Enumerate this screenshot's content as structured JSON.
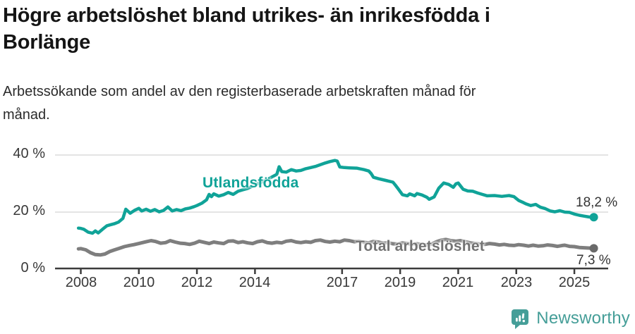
{
  "header": {
    "title": "Högre arbetslöshet bland utrikes- än inrikesfödda i\nBorlänge",
    "subtitle": "Arbetssökande som andel av den registerbaserade arbetskraften månad för\nmånad."
  },
  "footer": {
    "brand_name": "Newsworthy",
    "logo_icon": "bar-chart-speech-bubble-icon"
  },
  "colors": {
    "accent_teal": "#10a398",
    "series_gray": "#7e7e7e",
    "gray_marker": "#6a6a6a",
    "gray_label": "#737373",
    "grid": "#dcdcdc",
    "axis": "#3c3c3c",
    "tick_text": "#383838",
    "title_text": "#151515",
    "brand_teal": "#459e98"
  },
  "chart_data": {
    "type": "line",
    "title": "Högre arbetslöshet bland utrikes- än inrikesfödda i Borlänge",
    "subtitle": "Arbetssökande som andel av den registerbaserade arbetskraften månad för månad.",
    "xlabel": "",
    "ylabel": "",
    "grid": true,
    "legend_position": "inline-labels",
    "x_axis": {
      "unit": "year",
      "range": [
        2007.9,
        2025.7
      ],
      "ticks": [
        {
          "year": 2008,
          "label": "2008"
        },
        {
          "year": 2010,
          "label": "2010"
        },
        {
          "year": 2012,
          "label": "2012"
        },
        {
          "year": 2014,
          "label": "2014"
        },
        {
          "year": 2017,
          "label": "2017"
        },
        {
          "year": 2019,
          "label": "2019"
        },
        {
          "year": 2021,
          "label": "2021"
        },
        {
          "year": 2023,
          "label": "2023"
        },
        {
          "year": 2025,
          "label": "2025"
        }
      ]
    },
    "y_axis": {
      "unit": "%",
      "range": [
        0,
        44
      ],
      "ticks": [
        {
          "value": 0,
          "label": "0 %"
        },
        {
          "value": 20,
          "label": "20 %"
        },
        {
          "value": 40,
          "label": "40 %"
        }
      ]
    },
    "series": [
      {
        "name": "Utlandsfödda",
        "color": "#10a398",
        "marker_color": "#10a398",
        "end_label": "18,2 %",
        "end_value": 18.2,
        "points": [
          [
            2007.92,
            14.4
          ],
          [
            2008.0,
            14.3
          ],
          [
            2008.1,
            14.0
          ],
          [
            2008.25,
            13.0
          ],
          [
            2008.4,
            12.6
          ],
          [
            2008.5,
            13.4
          ],
          [
            2008.6,
            12.7
          ],
          [
            2008.75,
            14.0
          ],
          [
            2008.9,
            15.2
          ],
          [
            2009.0,
            15.5
          ],
          [
            2009.15,
            15.9
          ],
          [
            2009.3,
            16.5
          ],
          [
            2009.45,
            17.8
          ],
          [
            2009.55,
            21.0
          ],
          [
            2009.7,
            19.6
          ],
          [
            2009.85,
            20.6
          ],
          [
            2010.0,
            21.3
          ],
          [
            2010.1,
            20.4
          ],
          [
            2010.25,
            21.0
          ],
          [
            2010.4,
            20.3
          ],
          [
            2010.55,
            20.9
          ],
          [
            2010.7,
            20.1
          ],
          [
            2010.85,
            20.6
          ],
          [
            2011.0,
            21.8
          ],
          [
            2011.15,
            20.4
          ],
          [
            2011.3,
            20.9
          ],
          [
            2011.45,
            20.5
          ],
          [
            2011.6,
            21.1
          ],
          [
            2011.75,
            21.4
          ],
          [
            2011.9,
            21.9
          ],
          [
            2012.0,
            22.3
          ],
          [
            2012.17,
            23.1
          ],
          [
            2012.33,
            24.3
          ],
          [
            2012.42,
            26.2
          ],
          [
            2012.5,
            25.4
          ],
          [
            2012.58,
            26.4
          ],
          [
            2012.75,
            25.6
          ],
          [
            2012.92,
            26.1
          ],
          [
            2013.08,
            26.9
          ],
          [
            2013.25,
            26.2
          ],
          [
            2013.42,
            27.3
          ],
          [
            2013.58,
            27.8
          ],
          [
            2013.75,
            28.3
          ],
          [
            2013.92,
            29.1
          ],
          [
            2014.08,
            29.9
          ],
          [
            2014.25,
            30.6
          ],
          [
            2014.42,
            31.4
          ],
          [
            2014.58,
            32.3
          ],
          [
            2014.75,
            33.2
          ],
          [
            2014.83,
            35.9
          ],
          [
            2014.92,
            34.2
          ],
          [
            2015.08,
            34.0
          ],
          [
            2015.25,
            34.9
          ],
          [
            2015.42,
            34.4
          ],
          [
            2015.58,
            34.6
          ],
          [
            2015.75,
            35.2
          ],
          [
            2015.92,
            35.6
          ],
          [
            2016.08,
            36.0
          ],
          [
            2016.25,
            36.6
          ],
          [
            2016.42,
            37.2
          ],
          [
            2016.58,
            37.7
          ],
          [
            2016.75,
            38.1
          ],
          [
            2016.83,
            37.9
          ],
          [
            2016.92,
            35.8
          ],
          [
            2017.08,
            35.6
          ],
          [
            2017.25,
            35.5
          ],
          [
            2017.5,
            35.4
          ],
          [
            2017.75,
            34.9
          ],
          [
            2017.92,
            34.4
          ],
          [
            2018.0,
            33.5
          ],
          [
            2018.08,
            32.2
          ],
          [
            2018.25,
            31.7
          ],
          [
            2018.5,
            31.1
          ],
          [
            2018.75,
            30.5
          ],
          [
            2018.83,
            29.5
          ],
          [
            2018.92,
            28.3
          ],
          [
            2019.08,
            26.1
          ],
          [
            2019.25,
            25.7
          ],
          [
            2019.33,
            26.4
          ],
          [
            2019.5,
            25.7
          ],
          [
            2019.58,
            26.5
          ],
          [
            2019.75,
            26.0
          ],
          [
            2019.92,
            25.2
          ],
          [
            2020.0,
            24.5
          ],
          [
            2020.17,
            25.3
          ],
          [
            2020.33,
            28.4
          ],
          [
            2020.5,
            30.2
          ],
          [
            2020.67,
            29.7
          ],
          [
            2020.83,
            28.7
          ],
          [
            2020.92,
            29.9
          ],
          [
            2021.0,
            30.2
          ],
          [
            2021.17,
            28.0
          ],
          [
            2021.33,
            27.4
          ],
          [
            2021.5,
            27.3
          ],
          [
            2021.67,
            26.7
          ],
          [
            2021.83,
            26.2
          ],
          [
            2022.0,
            25.7
          ],
          [
            2022.25,
            25.8
          ],
          [
            2022.5,
            25.5
          ],
          [
            2022.75,
            25.8
          ],
          [
            2022.92,
            25.4
          ],
          [
            2023.08,
            24.1
          ],
          [
            2023.25,
            23.3
          ],
          [
            2023.33,
            22.9
          ],
          [
            2023.5,
            22.3
          ],
          [
            2023.67,
            22.7
          ],
          [
            2023.83,
            21.7
          ],
          [
            2024.0,
            21.2
          ],
          [
            2024.17,
            20.4
          ],
          [
            2024.33,
            20.1
          ],
          [
            2024.5,
            20.5
          ],
          [
            2024.67,
            20.0
          ],
          [
            2024.83,
            19.9
          ],
          [
            2025.0,
            19.3
          ],
          [
            2025.17,
            18.9
          ],
          [
            2025.33,
            18.6
          ],
          [
            2025.5,
            18.3
          ],
          [
            2025.67,
            18.2
          ]
        ]
      },
      {
        "name": "Total arbetslöshet",
        "color": "#7e7e7e",
        "marker_color": "#6a6a6a",
        "end_label": "7,3 %",
        "end_value": 7.3,
        "points": [
          [
            2007.92,
            7.1
          ],
          [
            2008.0,
            7.2
          ],
          [
            2008.17,
            6.8
          ],
          [
            2008.33,
            5.8
          ],
          [
            2008.5,
            5.1
          ],
          [
            2008.67,
            5.0
          ],
          [
            2008.83,
            5.3
          ],
          [
            2009.0,
            6.2
          ],
          [
            2009.17,
            6.8
          ],
          [
            2009.33,
            7.3
          ],
          [
            2009.5,
            7.9
          ],
          [
            2009.67,
            8.3
          ],
          [
            2009.83,
            8.6
          ],
          [
            2010.0,
            9.0
          ],
          [
            2010.25,
            9.6
          ],
          [
            2010.42,
            10.0
          ],
          [
            2010.58,
            9.7
          ],
          [
            2010.75,
            9.1
          ],
          [
            2010.92,
            9.3
          ],
          [
            2011.08,
            10.0
          ],
          [
            2011.25,
            9.5
          ],
          [
            2011.42,
            9.1
          ],
          [
            2011.58,
            9.0
          ],
          [
            2011.75,
            8.7
          ],
          [
            2011.92,
            9.1
          ],
          [
            2012.08,
            9.8
          ],
          [
            2012.25,
            9.4
          ],
          [
            2012.42,
            9.0
          ],
          [
            2012.58,
            9.5
          ],
          [
            2012.75,
            9.2
          ],
          [
            2012.92,
            9.0
          ],
          [
            2013.08,
            9.8
          ],
          [
            2013.25,
            9.9
          ],
          [
            2013.42,
            9.3
          ],
          [
            2013.58,
            9.6
          ],
          [
            2013.75,
            9.2
          ],
          [
            2013.92,
            9.0
          ],
          [
            2014.08,
            9.6
          ],
          [
            2014.25,
            9.9
          ],
          [
            2014.42,
            9.3
          ],
          [
            2014.58,
            9.1
          ],
          [
            2014.75,
            9.4
          ],
          [
            2014.92,
            9.2
          ],
          [
            2015.08,
            9.8
          ],
          [
            2015.25,
            10.0
          ],
          [
            2015.42,
            9.5
          ],
          [
            2015.58,
            9.3
          ],
          [
            2015.75,
            9.6
          ],
          [
            2015.92,
            9.4
          ],
          [
            2016.08,
            10.0
          ],
          [
            2016.25,
            10.2
          ],
          [
            2016.42,
            9.7
          ],
          [
            2016.58,
            9.5
          ],
          [
            2016.75,
            9.8
          ],
          [
            2016.92,
            9.6
          ],
          [
            2017.08,
            10.2
          ],
          [
            2017.25,
            10.0
          ],
          [
            2017.42,
            9.6
          ],
          [
            2017.58,
            9.8
          ],
          [
            2017.75,
            9.4
          ],
          [
            2017.92,
            9.2
          ],
          [
            2018.08,
            9.7
          ],
          [
            2018.25,
            9.5
          ],
          [
            2018.42,
            9.1
          ],
          [
            2018.58,
            9.3
          ],
          [
            2018.75,
            8.9
          ],
          [
            2018.92,
            8.8
          ],
          [
            2019.08,
            9.2
          ],
          [
            2019.25,
            9.0
          ],
          [
            2019.42,
            8.7
          ],
          [
            2019.58,
            8.9
          ],
          [
            2019.75,
            8.6
          ],
          [
            2019.92,
            8.5
          ],
          [
            2020.08,
            8.8
          ],
          [
            2020.25,
            9.6
          ],
          [
            2020.42,
            10.2
          ],
          [
            2020.58,
            10.4
          ],
          [
            2020.75,
            10.0
          ],
          [
            2020.92,
            9.8
          ],
          [
            2021.08,
            10.0
          ],
          [
            2021.25,
            9.6
          ],
          [
            2021.42,
            9.2
          ],
          [
            2021.58,
            9.0
          ],
          [
            2021.75,
            8.8
          ],
          [
            2021.92,
            8.7
          ],
          [
            2022.08,
            9.0
          ],
          [
            2022.25,
            8.8
          ],
          [
            2022.42,
            8.5
          ],
          [
            2022.58,
            8.7
          ],
          [
            2022.75,
            8.4
          ],
          [
            2022.92,
            8.3
          ],
          [
            2023.08,
            8.6
          ],
          [
            2023.25,
            8.4
          ],
          [
            2023.42,
            8.1
          ],
          [
            2023.58,
            8.4
          ],
          [
            2023.75,
            8.1
          ],
          [
            2023.92,
            8.2
          ],
          [
            2024.08,
            8.5
          ],
          [
            2024.25,
            8.3
          ],
          [
            2024.42,
            8.0
          ],
          [
            2024.58,
            8.3
          ],
          [
            2024.67,
            8.4
          ],
          [
            2024.83,
            8.0
          ],
          [
            2025.0,
            7.9
          ],
          [
            2025.17,
            7.6
          ],
          [
            2025.33,
            7.5
          ],
          [
            2025.5,
            7.4
          ],
          [
            2025.67,
            7.3
          ]
        ]
      }
    ]
  }
}
